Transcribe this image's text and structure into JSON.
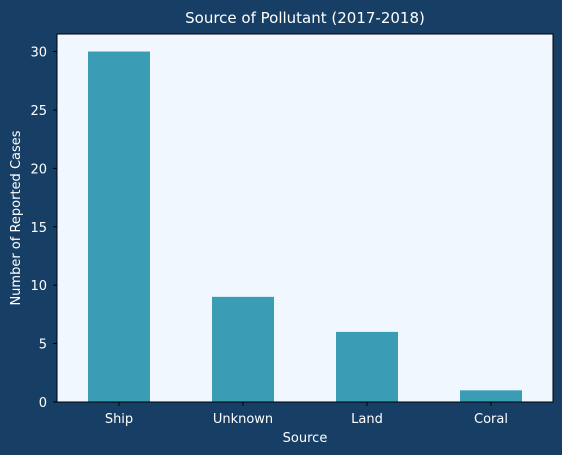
{
  "chart_data": {
    "type": "bar",
    "title": "Source of Pollutant (2017-2018)",
    "xlabel": "Source",
    "ylabel": "Number of Reported Cases",
    "categories": [
      "Ship",
      "Unknown",
      "Land",
      "Coral"
    ],
    "values": [
      30,
      9,
      6,
      1
    ],
    "ylim": [
      0,
      31.5
    ],
    "yticks": [
      0,
      5,
      10,
      15,
      20,
      25,
      30
    ],
    "grid": false,
    "legend": "none"
  },
  "colors": {
    "figure_background": "#173f66",
    "plot_background": "#f0f7ff",
    "bar": "#3a9db5",
    "text": "#ffffff",
    "axis": "#000000"
  }
}
